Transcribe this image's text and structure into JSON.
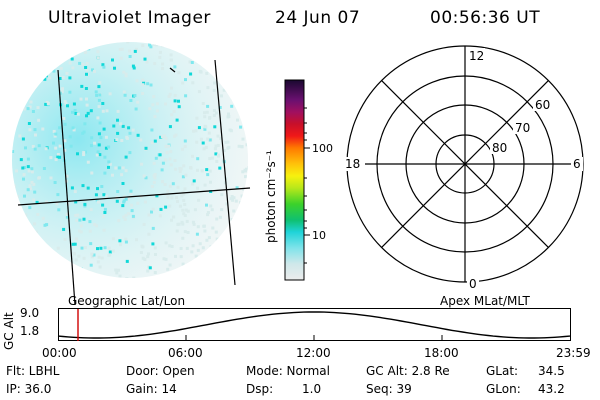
{
  "header": {
    "instrument": "Ultraviolet Imager",
    "date": "24 Jun 07",
    "time": "00:56:36 UT"
  },
  "colorbar": {
    "unit_label": "photon cm⁻²s⁻¹",
    "ticks": [
      "100",
      "10"
    ]
  },
  "polar_plot": {
    "mlt_labels": {
      "top": "12",
      "left": "18",
      "right": "6",
      "bottom": "0"
    },
    "lat_labels": [
      "60",
      "70",
      "80"
    ]
  },
  "labels": {
    "left_panel": "Geographic Lat/Lon",
    "right_panel": "Apex MLat/MLT"
  },
  "timeline": {
    "axis_label": "GC Alt",
    "y_ticks": [
      "9.0",
      "1.8"
    ],
    "x_ticks": [
      "00:00",
      "06:00",
      "12:00",
      "18:00",
      "23:59"
    ],
    "marker_time_fraction": 0.039
  },
  "status": {
    "flt": "Flt: LBHL",
    "ip": "IP: 36.0",
    "door": "Door: Open",
    "gain": "Gain: 14",
    "mode": "Mode: Normal",
    "dsp_label": "Dsp:",
    "dsp_value": "1.0",
    "gc_alt": "GC Alt: 2.8 Re",
    "seq": "Seq: 39",
    "glat_label": "GLat:",
    "glat_value": "34.5",
    "glon_label": "GLon:",
    "glon_value": "43.2"
  }
}
